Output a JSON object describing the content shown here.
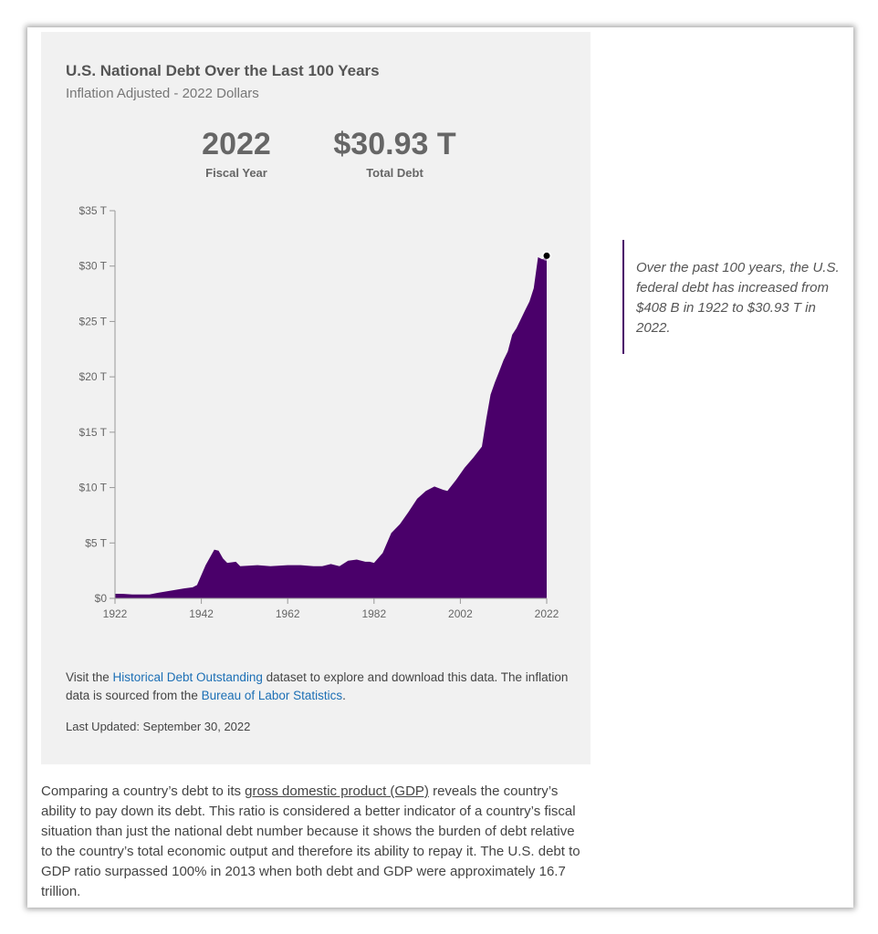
{
  "panel": {
    "title": "U.S. National Debt Over the Last 100 Years",
    "subtitle": "Inflation Adjusted - 2022 Dollars",
    "stats": {
      "year_value": "2022",
      "year_label": "Fiscal Year",
      "debt_value": "$30.93 T",
      "debt_label": "Total Debt"
    },
    "note": {
      "pre": "Visit the ",
      "link1": "Historical Debt Outstanding",
      "mid": " dataset to explore and download this data. The inflation data is sourced from the ",
      "link2": "Bureau of Labor Statistics",
      "post": "."
    },
    "last_updated": "Last Updated: September 30, 2022"
  },
  "quote": "Over the past 100 years, the U.S. federal debt has increased from $408 B in 1922 to $30.93 T in 2022.",
  "body": {
    "pre": "Comparing a country’s debt to its ",
    "link": "gross domestic product (GDP)",
    "post": " reveals the country’s ability to pay down its debt. This ratio is considered a better indicator of a country’s fiscal situation than just the national debt number because it shows the burden of debt relative to the country’s total economic output and therefore its ability to repay it. The U.S. debt to GDP ratio surpassed 100% in 2013 when both debt and GDP were approximately 16.7 trillion."
  },
  "colors": {
    "area": "#4a006a",
    "marker": "#000000"
  },
  "chart_data": {
    "type": "area",
    "xlabel": "",
    "ylabel": "",
    "xlim": [
      1922,
      2022
    ],
    "ylim": [
      0,
      35
    ],
    "grid": false,
    "x_ticks": [
      "1922",
      "1942",
      "1962",
      "1982",
      "2002",
      "2022"
    ],
    "y_ticks": [
      "$0",
      "$5 T",
      "$10 T",
      "$15 T",
      "$20 T",
      "$25 T",
      "$30 T",
      "$35 T"
    ],
    "y_tick_values": [
      0,
      5,
      10,
      15,
      20,
      25,
      30,
      35
    ],
    "x_tick_values": [
      1922,
      1942,
      1962,
      1982,
      2002,
      2022
    ],
    "series": [
      {
        "x": [
          1922,
          1924,
          1926,
          1930,
          1932,
          1935,
          1938,
          1940,
          1941,
          1943,
          1945,
          1946,
          1947,
          1948,
          1950,
          1951,
          1955,
          1958,
          1962,
          1965,
          1968,
          1970,
          1972,
          1974,
          1976,
          1978,
          1980,
          1981,
          1982,
          1984,
          1986,
          1988,
          1990,
          1992,
          1994,
          1996,
          1998,
          1999,
          2001,
          2003,
          2005,
          2007,
          2008,
          2009,
          2010,
          2011,
          2012,
          2013,
          2014,
          2015,
          2016,
          2017,
          2018,
          2019,
          2020,
          2021,
          2022
        ],
        "y": [
          0.41,
          0.4,
          0.35,
          0.35,
          0.5,
          0.7,
          0.9,
          1.0,
          1.2,
          3.0,
          4.4,
          4.3,
          3.6,
          3.2,
          3.3,
          2.9,
          3.0,
          2.9,
          3.0,
          3.0,
          2.9,
          2.9,
          3.1,
          2.9,
          3.4,
          3.5,
          3.3,
          3.3,
          3.2,
          4.1,
          5.9,
          6.7,
          7.8,
          9.0,
          9.7,
          10.1,
          9.8,
          9.7,
          10.7,
          11.8,
          12.7,
          13.7,
          16.2,
          18.4,
          19.5,
          20.5,
          21.5,
          22.3,
          23.8,
          24.4,
          25.2,
          26.0,
          26.8,
          28.0,
          30.8,
          30.6,
          30.93
        ]
      }
    ],
    "highlight": {
      "x": 2022,
      "y": 30.93
    }
  }
}
